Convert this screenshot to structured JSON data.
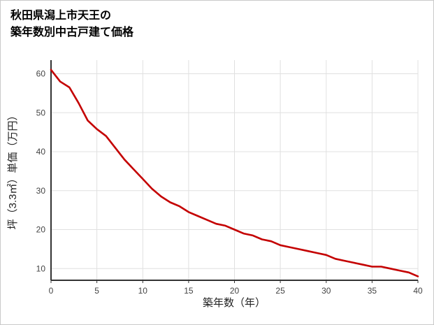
{
  "page": {
    "title_line1": "秋田県潟上市天王の",
    "title_line2": "築年数別中古戸建て価格"
  },
  "chart_data": {
    "type": "line",
    "title": "秋田県潟上市天王の築年数別中古戸建て価格",
    "xlabel": "築年数（年）",
    "ylabel": "坪（3.3㎡）単価（万円）",
    "x": [
      0,
      1,
      2,
      3,
      4,
      5,
      6,
      7,
      8,
      9,
      10,
      11,
      12,
      13,
      14,
      15,
      16,
      17,
      18,
      19,
      20,
      21,
      22,
      23,
      24,
      25,
      26,
      27,
      28,
      29,
      30,
      31,
      32,
      33,
      34,
      35,
      36,
      37,
      38,
      39,
      40
    ],
    "values": [
      61,
      58,
      56.5,
      52.5,
      48,
      45.8,
      44,
      41,
      38,
      35.5,
      33,
      30.5,
      28.5,
      27,
      26,
      24.5,
      23.5,
      22.5,
      21.5,
      21,
      20,
      19,
      18.5,
      17.5,
      17,
      16,
      15.5,
      15,
      14.5,
      14,
      13.5,
      12.5,
      12,
      11.5,
      11,
      10.5,
      10.5,
      10,
      9.5,
      9,
      8
    ],
    "x_ticks": [
      0,
      5,
      10,
      15,
      20,
      25,
      30,
      35,
      40
    ],
    "y_ticks": [
      10,
      20,
      30,
      40,
      50,
      60
    ],
    "xlim": [
      0,
      40
    ],
    "ylim": [
      7,
      63.5
    ],
    "grid": true,
    "legend": "none",
    "line_color": "#c40000",
    "axis_color": "#333333",
    "grid_color": "#e0e0e0"
  }
}
